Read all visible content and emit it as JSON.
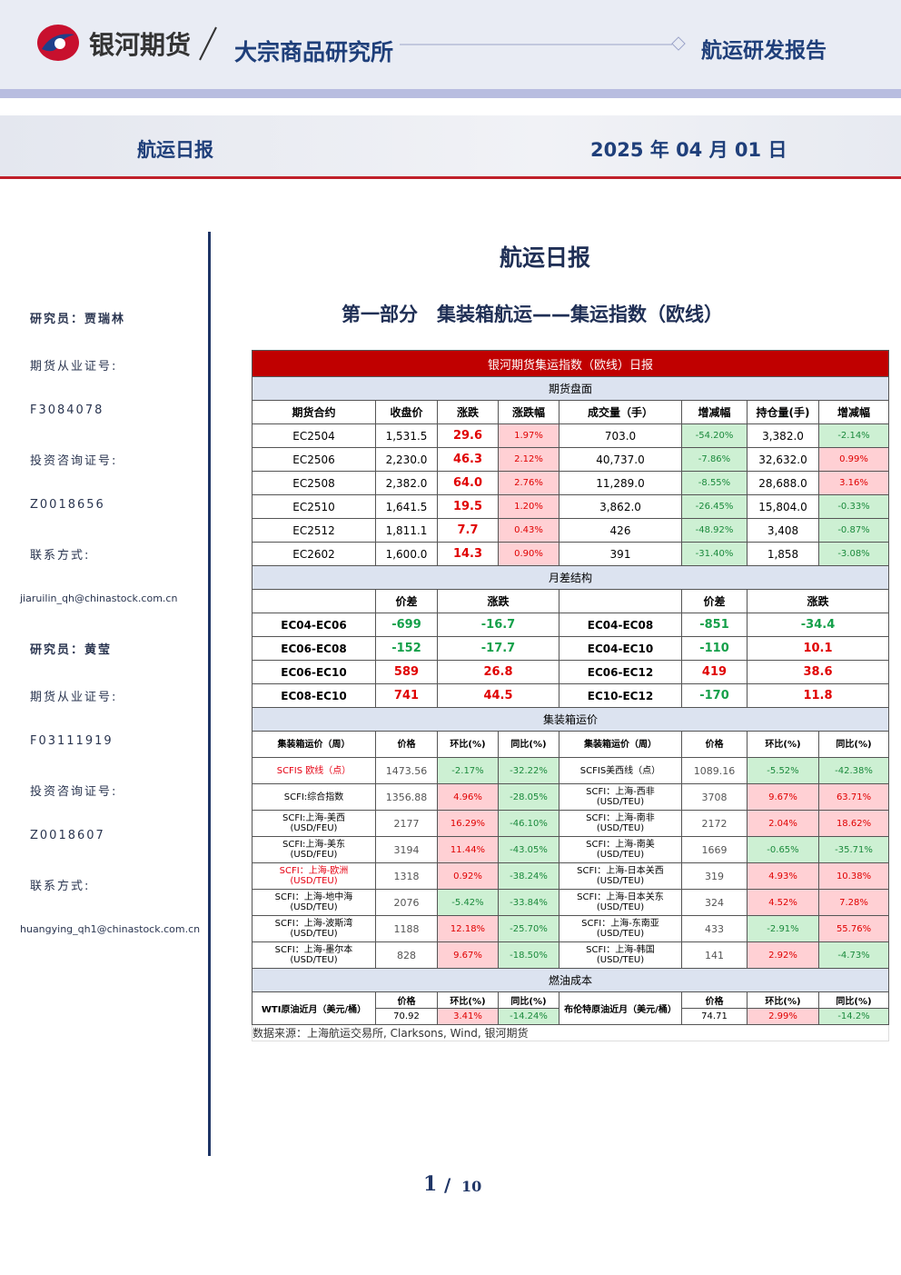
{
  "header": {
    "brand": "银河期货",
    "institute": "大宗商品研究所",
    "report_type": "航运研发报告",
    "banner_title": "航运日报",
    "date": "2025 年 04 月 01 日"
  },
  "sidebar": {
    "analysts": [
      {
        "name": "研究员：贾瑞林",
        "license_label": "期货从业证号:",
        "license": "F3084078",
        "consult_label": "投资咨询证号:",
        "consult": "Z0018656",
        "contact_label": "联系方式:",
        "email": "jiaruilin_qh@chinastock.com.cn"
      },
      {
        "name": "研究员：黄莹",
        "license_label": "期货从业证号:",
        "license": "F03111919",
        "consult_label": "投资咨询证号:",
        "consult": "Z0018607",
        "contact_label": "联系方式:",
        "email": "huangying_qh1@chinastock.com.cn"
      }
    ]
  },
  "document": {
    "title": "航运日报",
    "section": "第一部分　集装箱航运——集运指数（欧线）"
  },
  "table": {
    "title": "银河期货集运指数（欧线）日报",
    "futures": {
      "heading": "期货盘面",
      "columns": [
        "期货合约",
        "收盘价",
        "涨跌",
        "涨跌幅",
        "成交量（手）",
        "增减幅",
        "持仓量(手)",
        "增减幅"
      ],
      "rows": [
        [
          "EC2504",
          "1,531.5",
          "29.6",
          "1.97%",
          "703.0",
          "-54.20%",
          "3,382.0",
          "-2.14%"
        ],
        [
          "EC2506",
          "2,230.0",
          "46.3",
          "2.12%",
          "40,737.0",
          "-7.86%",
          "32,632.0",
          "0.99%"
        ],
        [
          "EC2508",
          "2,382.0",
          "64.0",
          "2.76%",
          "11,289.0",
          "-8.55%",
          "28,688.0",
          "3.16%"
        ],
        [
          "EC2510",
          "1,641.5",
          "19.5",
          "1.20%",
          "3,862.0",
          "-26.45%",
          "15,804.0",
          "-0.33%"
        ],
        [
          "EC2512",
          "1,811.1",
          "7.7",
          "0.43%",
          "426",
          "-48.92%",
          "3,408",
          "-0.87%"
        ],
        [
          "EC2602",
          "1,600.0",
          "14.3",
          "0.90%",
          "391",
          "-31.40%",
          "1,858",
          "-3.08%"
        ]
      ]
    },
    "spreads": {
      "heading": "月差结构",
      "columns": [
        "价差",
        "涨跌",
        "价差",
        "涨跌"
      ],
      "rows": [
        [
          "EC04-EC06",
          "-699",
          "-16.7",
          "EC04-EC08",
          "-851",
          "-34.4"
        ],
        [
          "EC06-EC08",
          "-152",
          "-17.7",
          "EC04-EC10",
          "-110",
          "10.1"
        ],
        [
          "EC06-EC10",
          "589",
          "26.8",
          "EC06-EC12",
          "419",
          "38.6"
        ],
        [
          "EC08-EC10",
          "741",
          "44.5",
          "EC10-EC12",
          "-170",
          "11.8"
        ]
      ]
    },
    "freight": {
      "heading": "集装箱运价",
      "columns": [
        "集装箱运价（周）",
        "价格",
        "环比(%)",
        "同比(%)",
        "集装箱运价（周）",
        "价格",
        "环比(%)",
        "同比(%)"
      ],
      "rows": [
        [
          "SCFIS 欧线（点）",
          "1473.56",
          "-2.17%",
          "-32.22%",
          "SCFIS美西线（点）",
          "1089.16",
          "-5.52%",
          "-42.38%"
        ],
        [
          "SCFI:综合指数",
          "1356.88",
          "4.96%",
          "-28.05%",
          "SCFI：上海-西非\n(USD/TEU)",
          "3708",
          "9.67%",
          "63.71%"
        ],
        [
          "SCFI:上海-美西\n(USD/FEU)",
          "2177",
          "16.29%",
          "-46.10%",
          "SCFI：上海-南非\n(USD/TEU)",
          "2172",
          "2.04%",
          "18.62%"
        ],
        [
          "SCFI:上海-美东\n(USD/FEU)",
          "3194",
          "11.44%",
          "-43.05%",
          "SCFI：上海-南美\n(USD/TEU)",
          "1669",
          "-0.65%",
          "-35.71%"
        ],
        [
          "SCFI：上海-欧洲\n(USD/TEU)",
          "1318",
          "0.92%",
          "-38.24%",
          "SCFI：上海-日本关西\n(USD/TEU)",
          "319",
          "4.93%",
          "10.38%"
        ],
        [
          "SCFI：上海-地中海\n(USD/TEU)",
          "2076",
          "-5.42%",
          "-33.84%",
          "SCFI：上海-日本关东\n(USD/TEU)",
          "324",
          "4.52%",
          "7.28%"
        ],
        [
          "SCFI：上海-波斯湾\n(USD/TEU)",
          "1188",
          "12.18%",
          "-25.70%",
          "SCFI：上海-东南亚\n(USD/TEU)",
          "433",
          "-2.91%",
          "55.76%"
        ],
        [
          "SCFI：上海-墨尔本\n(USD/TEU)",
          "828",
          "9.67%",
          "-18.50%",
          "SCFI：上海-韩国\n(USD/TEU)",
          "141",
          "2.92%",
          "-4.73%"
        ]
      ]
    },
    "fuel": {
      "heading": "燃油成本",
      "columns": [
        "WTI原油近月（美元/桶）",
        "价格",
        "环比(%)",
        "同比(%)",
        "布伦特原油近月（美元/桶）",
        "价格",
        "环比(%)",
        "同比(%)"
      ],
      "values": [
        "70.92",
        "3.41%",
        "-14.24%",
        "74.71",
        "2.99%",
        "-14.2%"
      ]
    },
    "source": "数据来源：上海航运交易所, Clarksons, Wind, 银河期货"
  },
  "footer": {
    "page": "1",
    "separator": "/",
    "total": "10"
  }
}
